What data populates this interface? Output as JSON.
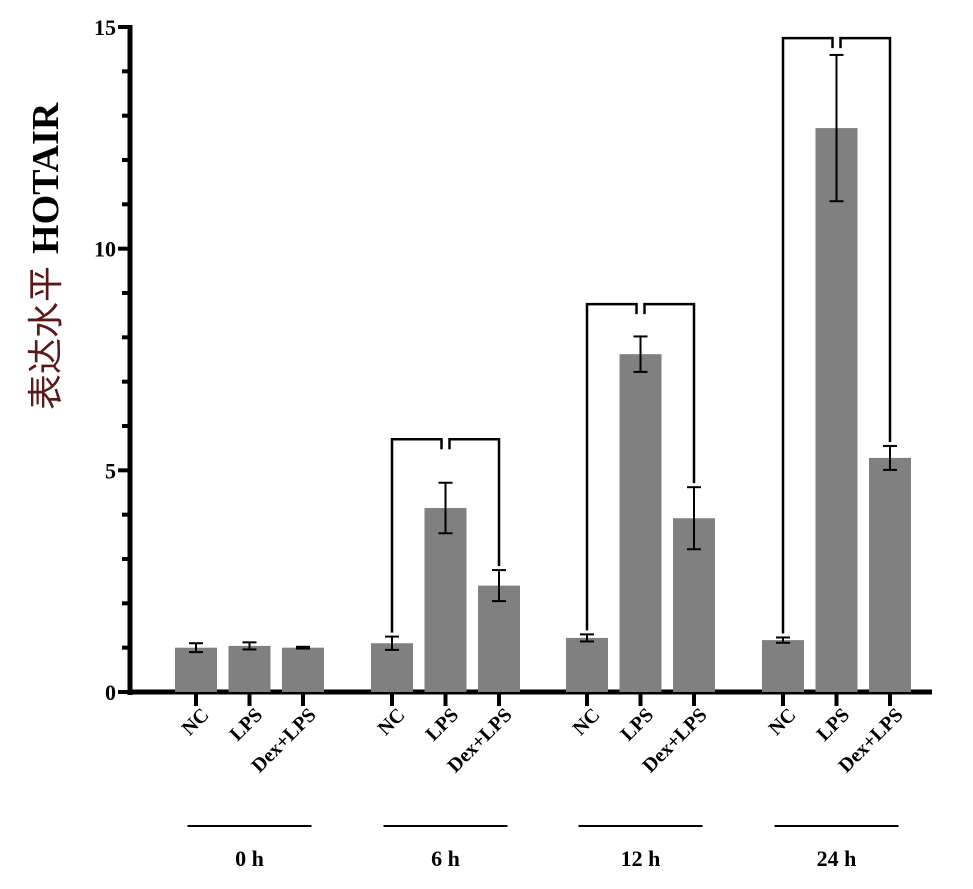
{
  "chart_data": {
    "type": "bar",
    "title": "",
    "ylabel_cn": "表达水平",
    "ylabel_gene": "HOTAIR",
    "ylim": [
      0,
      15
    ],
    "yticks": [
      0,
      5,
      10,
      15
    ],
    "yticks_labels": [
      "0",
      "5",
      "10",
      "15"
    ],
    "minor_tick_step": 1,
    "grid": false,
    "bar_color": "#808080",
    "ylabel_cn_color": "#5a1a1a",
    "groups": [
      {
        "label": "0 h",
        "categories": [
          "NC",
          "LPS",
          "Dex+LPS"
        ],
        "values": [
          1.0,
          1.04,
          1.0
        ],
        "errors": [
          0.1,
          0.08,
          0.02
        ],
        "bracket": null
      },
      {
        "label": "6 h",
        "categories": [
          "NC",
          "LPS",
          "Dex+LPS"
        ],
        "values": [
          1.1,
          4.15,
          2.4
        ],
        "errors": [
          0.15,
          0.57,
          0.35
        ],
        "bracket": 5.7
      },
      {
        "label": "12 h",
        "categories": [
          "NC",
          "LPS",
          "Dex+LPS"
        ],
        "values": [
          1.22,
          7.62,
          3.92
        ],
        "errors": [
          0.08,
          0.4,
          0.7
        ],
        "bracket": 8.75
      },
      {
        "label": "24 h",
        "categories": [
          "NC",
          "LPS",
          "Dex+LPS"
        ],
        "values": [
          1.17,
          12.72,
          5.28
        ],
        "errors": [
          0.06,
          1.65,
          0.27
        ],
        "bracket": 14.75
      }
    ]
  }
}
